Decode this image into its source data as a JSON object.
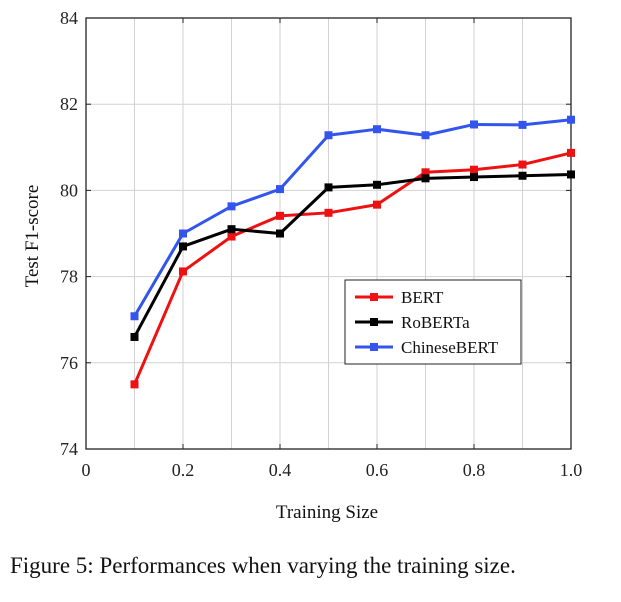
{
  "caption": "Figure 5: Performances when varying the training size.",
  "chart_data": {
    "type": "line",
    "title": "",
    "xlabel": "Training Size",
    "ylabel": "Test F1-score",
    "xlim": [
      0,
      1.0
    ],
    "ylim": [
      74,
      84
    ],
    "x_ticks": [
      0,
      0.2,
      0.4,
      0.6,
      0.8,
      1.0
    ],
    "x_tick_labels": [
      "0",
      "0.2",
      "0.4",
      "0.6",
      "0.8",
      "1.0"
    ],
    "y_ticks": [
      74,
      76,
      78,
      80,
      82,
      84
    ],
    "y_tick_labels": [
      "74",
      "76",
      "78",
      "80",
      "82",
      "84"
    ],
    "grid": true,
    "legend_position": "inside-right",
    "x": [
      0.1,
      0.2,
      0.3,
      0.4,
      0.5,
      0.6,
      0.7,
      0.8,
      0.9,
      1.0
    ],
    "series": [
      {
        "name": "BERT",
        "color": "#ee1111",
        "values": [
          75.5,
          78.12,
          78.93,
          79.41,
          79.48,
          79.67,
          80.42,
          80.48,
          80.6,
          80.87
        ]
      },
      {
        "name": "RoBERTa",
        "color": "#000000",
        "values": [
          76.6,
          78.7,
          79.1,
          79.0,
          80.07,
          80.13,
          80.28,
          80.31,
          80.34,
          80.37
        ]
      },
      {
        "name": "ChineseBERT",
        "color": "#3355ee",
        "values": [
          77.08,
          79.0,
          79.63,
          80.03,
          81.28,
          81.42,
          81.28,
          81.53,
          81.52,
          81.64
        ]
      }
    ]
  }
}
